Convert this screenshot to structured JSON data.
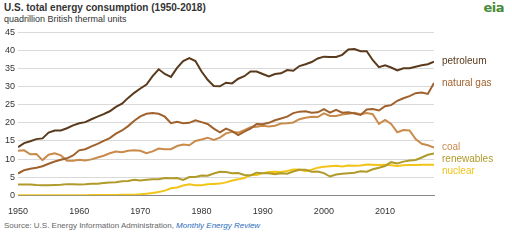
{
  "chart_data": {
    "type": "line",
    "title": "U.S. total energy consumption (1950-2018)",
    "subtitle": "quadrillion British thermal units",
    "logo": "eia",
    "source": "Source: U.S. Energy Information Administration,",
    "source_link": "Monthly Energy Review",
    "x": [
      1950,
      1951,
      1952,
      1953,
      1954,
      1955,
      1956,
      1957,
      1958,
      1959,
      1960,
      1961,
      1962,
      1963,
      1964,
      1965,
      1966,
      1967,
      1968,
      1969,
      1970,
      1971,
      1972,
      1973,
      1974,
      1975,
      1976,
      1977,
      1978,
      1979,
      1980,
      1981,
      1982,
      1983,
      1984,
      1985,
      1986,
      1987,
      1988,
      1989,
      1990,
      1991,
      1992,
      1993,
      1994,
      1995,
      1996,
      1997,
      1998,
      1999,
      2000,
      2001,
      2002,
      2003,
      2004,
      2005,
      2006,
      2007,
      2008,
      2009,
      2010,
      2011,
      2012,
      2013,
      2014,
      2015,
      2016,
      2017,
      2018
    ],
    "series": [
      {
        "name": "petroleum",
        "color": "#5a3a1c",
        "values": [
          13.3,
          14.4,
          14.9,
          15.5,
          15.7,
          17.3,
          17.9,
          17.9,
          18.5,
          19.3,
          19.9,
          20.2,
          21.0,
          21.7,
          22.4,
          23.2,
          24.4,
          25.3,
          26.9,
          28.3,
          29.5,
          30.6,
          32.9,
          34.8,
          33.5,
          32.7,
          35.2,
          37.1,
          37.9,
          37.1,
          34.2,
          31.9,
          30.2,
          30.1,
          31.1,
          30.9,
          32.2,
          32.9,
          34.2,
          34.2,
          33.5,
          32.8,
          33.5,
          33.7,
          34.6,
          34.4,
          35.7,
          36.2,
          36.8,
          37.8,
          38.3,
          38.2,
          38.2,
          38.8,
          40.3,
          40.4,
          39.8,
          39.8,
          37.3,
          35.4,
          35.9,
          35.3,
          34.5,
          35.1,
          35.1,
          35.5,
          35.9,
          36.2,
          36.9
        ]
      },
      {
        "name": "natural gas",
        "color": "#a0622d",
        "values": [
          6.0,
          6.9,
          7.3,
          7.6,
          8.0,
          8.7,
          9.3,
          9.8,
          10.2,
          11.0,
          12.4,
          12.7,
          13.5,
          14.2,
          15.0,
          15.8,
          17.0,
          17.9,
          19.1,
          20.6,
          21.8,
          22.5,
          22.7,
          22.5,
          21.7,
          19.9,
          20.3,
          19.9,
          20.0,
          20.7,
          20.2,
          19.7,
          18.4,
          17.4,
          18.4,
          17.7,
          16.6,
          17.6,
          18.4,
          19.7,
          19.6,
          20.0,
          20.7,
          21.2,
          21.7,
          22.7,
          23.1,
          23.2,
          22.8,
          22.9,
          23.8,
          22.8,
          23.6,
          22.8,
          22.9,
          22.6,
          22.2,
          23.7,
          23.8,
          23.4,
          24.6,
          24.9,
          26.1,
          26.8,
          27.4,
          28.2,
          28.4,
          28.0,
          31.0
        ]
      },
      {
        "name": "coal",
        "color": "#c98a4b",
        "values": [
          12.3,
          12.4,
          11.3,
          11.4,
          9.7,
          11.2,
          11.6,
          11.0,
          9.5,
          9.5,
          9.8,
          9.6,
          9.9,
          10.4,
          10.9,
          11.6,
          12.1,
          11.9,
          12.3,
          12.4,
          12.3,
          11.6,
          12.1,
          12.9,
          12.7,
          12.7,
          13.6,
          14.0,
          13.8,
          15.0,
          15.4,
          15.9,
          15.3,
          15.9,
          17.1,
          17.5,
          17.3,
          18.0,
          18.8,
          18.9,
          19.2,
          19.0,
          19.2,
          19.8,
          19.9,
          20.1,
          21.0,
          21.4,
          21.7,
          21.6,
          22.6,
          21.9,
          21.9,
          22.3,
          22.5,
          22.8,
          22.4,
          22.7,
          22.4,
          19.7,
          20.8,
          19.7,
          17.4,
          18.0,
          17.9,
          15.5,
          14.2,
          13.8,
          13.2
        ]
      },
      {
        "name": "renewables",
        "color": "#b09a2a",
        "values": [
          2.98,
          2.97,
          2.94,
          2.83,
          2.77,
          2.78,
          2.85,
          2.87,
          3.06,
          3.01,
          2.93,
          3.04,
          3.19,
          3.19,
          3.36,
          3.48,
          3.57,
          3.85,
          3.93,
          4.24,
          4.08,
          4.29,
          4.42,
          4.41,
          4.77,
          4.69,
          4.73,
          4.21,
          5.01,
          5.04,
          5.43,
          5.41,
          5.98,
          6.5,
          6.44,
          6.08,
          6.11,
          5.61,
          5.45,
          6.22,
          6.04,
          6.07,
          5.8,
          6.05,
          5.95,
          6.56,
          7.01,
          7.01,
          6.49,
          6.52,
          6.1,
          5.16,
          5.73,
          5.94,
          6.07,
          6.22,
          6.64,
          6.51,
          7.18,
          7.58,
          8.08,
          9.13,
          8.77,
          9.28,
          9.57,
          9.73,
          10.42,
          11.18,
          11.52
        ]
      },
      {
        "name": "nuclear",
        "color": "#f2c418",
        "values": [
          0,
          0,
          0,
          0,
          0,
          0,
          0,
          0,
          0,
          0,
          0.01,
          0.02,
          0.03,
          0.04,
          0.04,
          0.04,
          0.06,
          0.09,
          0.14,
          0.15,
          0.24,
          0.41,
          0.58,
          0.91,
          1.27,
          1.9,
          2.11,
          2.7,
          3.02,
          2.78,
          2.74,
          3.01,
          3.13,
          3.2,
          3.55,
          4.08,
          4.38,
          4.75,
          5.59,
          5.6,
          6.1,
          6.42,
          6.48,
          6.41,
          6.69,
          7.08,
          7.09,
          6.6,
          7.07,
          7.61,
          7.86,
          8.03,
          8.14,
          7.96,
          8.22,
          8.16,
          8.21,
          8.46,
          8.43,
          8.36,
          8.43,
          8.27,
          8.06,
          8.27,
          8.34,
          8.34,
          8.43,
          8.42,
          8.44
        ]
      }
    ],
    "xlim": [
      1950,
      2018
    ],
    "xticks": [
      1950,
      1960,
      1970,
      1980,
      1990,
      2000,
      2010
    ],
    "ylim": [
      0,
      45
    ],
    "yticks": [
      0,
      5,
      10,
      15,
      20,
      25,
      30,
      35,
      40,
      45
    ],
    "grid": true
  }
}
